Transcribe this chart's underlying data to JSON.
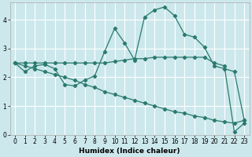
{
  "xlabel": "Humidex (Indice chaleur)",
  "x": [
    0,
    1,
    2,
    3,
    4,
    5,
    6,
    7,
    8,
    9,
    10,
    11,
    12,
    13,
    14,
    15,
    16,
    17,
    18,
    19,
    20,
    21,
    22,
    23
  ],
  "line1": [
    2.5,
    2.2,
    2.4,
    2.45,
    2.3,
    1.75,
    1.7,
    1.9,
    2.05,
    2.9,
    3.7,
    3.2,
    2.6,
    4.1,
    4.35,
    4.45,
    4.15,
    3.5,
    3.4,
    3.05,
    2.4,
    2.3,
    2.2,
    0.5
  ],
  "line2": [
    2.5,
    2.5,
    2.5,
    2.5,
    2.5,
    2.5,
    2.5,
    2.5,
    2.5,
    2.5,
    2.55,
    2.6,
    2.65,
    2.65,
    2.7,
    2.7,
    2.7,
    2.7,
    2.7,
    2.7,
    2.5,
    2.4,
    0.1,
    0.4
  ],
  "line3": [
    2.5,
    2.4,
    2.3,
    2.2,
    2.1,
    2.0,
    1.9,
    1.75,
    1.65,
    1.5,
    1.4,
    1.3,
    1.2,
    1.1,
    1.0,
    0.9,
    0.8,
    0.75,
    0.65,
    0.6,
    0.5,
    0.45,
    0.4,
    0.5
  ],
  "color": "#2a7a6e",
  "bg_color": "#cce8ec",
  "grid_color": "#ffffff",
  "ylim": [
    0,
    4.6
  ],
  "xlim": [
    -0.5,
    23.5
  ],
  "yticks": [
    0,
    1,
    2,
    3,
    4
  ],
  "xticks": [
    0,
    1,
    2,
    3,
    4,
    5,
    6,
    7,
    8,
    9,
    10,
    11,
    12,
    13,
    14,
    15,
    16,
    17,
    18,
    19,
    20,
    21,
    22,
    23
  ]
}
